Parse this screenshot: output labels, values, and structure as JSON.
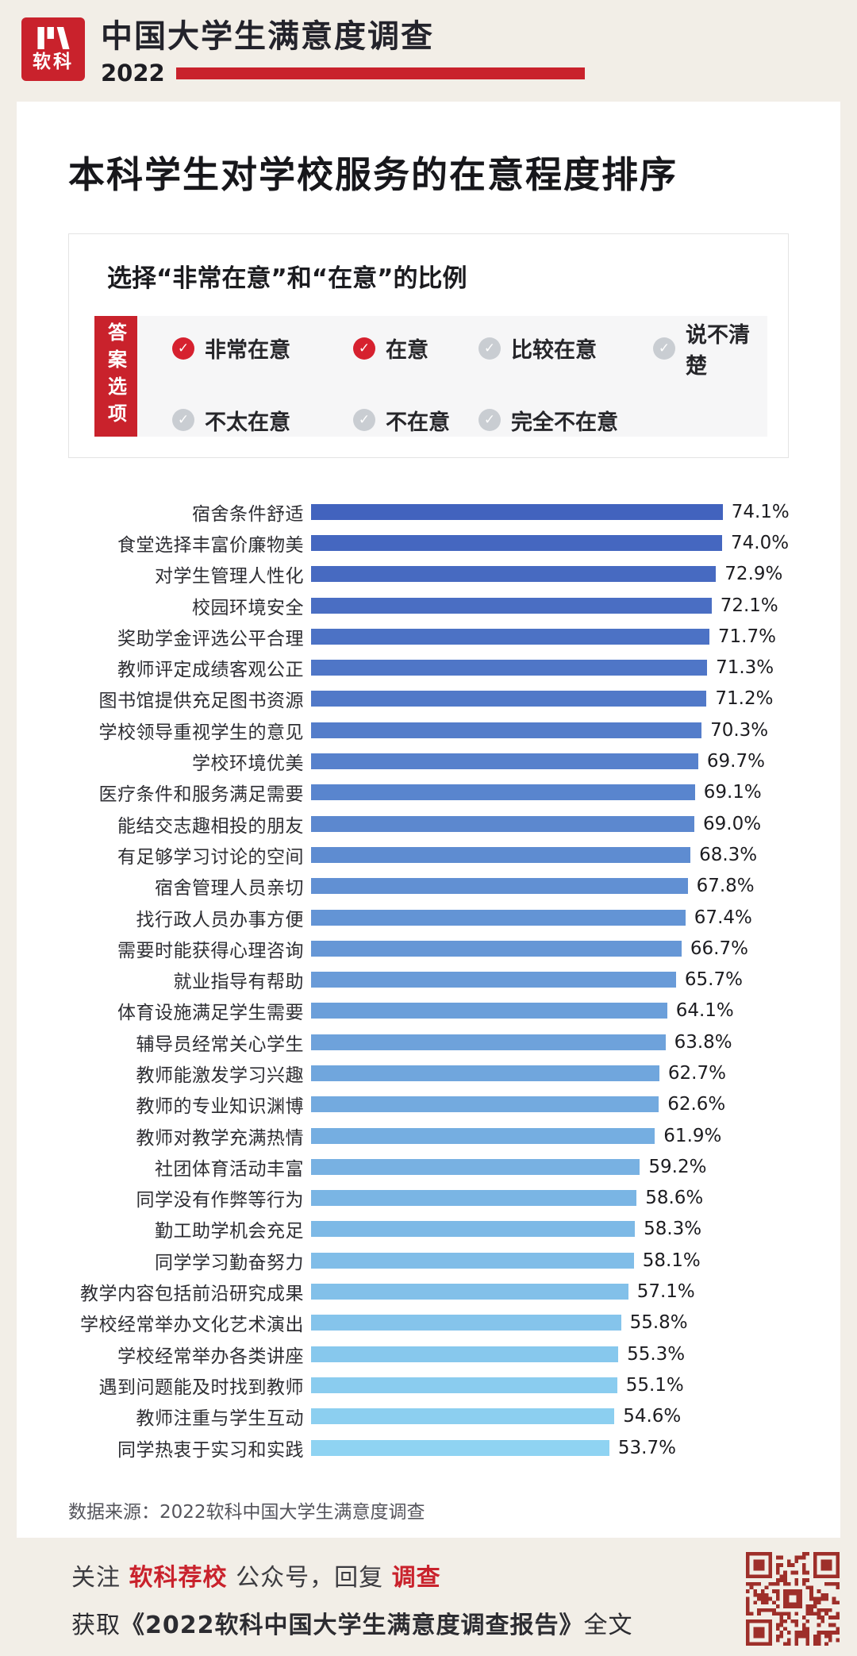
{
  "header": {
    "logo_text": "软科",
    "title": "中国大学生满意度调查",
    "year": "2022"
  },
  "card": {
    "title": "本科学生对学校服务的在意程度排序",
    "legend": {
      "heading": "选择“非常在意”和“在意”的比例",
      "tab_label": "答案选项",
      "options": [
        {
          "label": "非常在意",
          "checked": true
        },
        {
          "label": "在意",
          "checked": true
        },
        {
          "label": "比较在意",
          "checked": false
        },
        {
          "label": "说不清楚",
          "checked": false
        },
        {
          "label": "不太在意",
          "checked": false
        },
        {
          "label": "不在意",
          "checked": false
        },
        {
          "label": "完全不在意",
          "checked": false
        }
      ]
    },
    "source": "数据来源：2022软科中国大学生满意度调查"
  },
  "chart_data": {
    "type": "bar",
    "orientation": "horizontal",
    "title": "本科学生对学校服务的在意程度排序",
    "unit": "%",
    "xlim": [
      0,
      80
    ],
    "legend_position": "none",
    "grid": false,
    "categories": [
      "宿舍条件舒适",
      "食堂选择丰富价廉物美",
      "对学生管理人性化",
      "校园环境安全",
      "奖助学金评选公平合理",
      "教师评定成绩客观公正",
      "图书馆提供充足图书资源",
      "学校领导重视学生的意见",
      "学校环境优美",
      "医疗条件和服务满足需要",
      "能结交志趣相投的朋友",
      "有足够学习讨论的空间",
      "宿舍管理人员亲切",
      "找行政人员办事方便",
      "需要时能获得心理咨询",
      "就业指导有帮助",
      "体育设施满足学生需要",
      "辅导员经常关心学生",
      "教师能激发学习兴趣",
      "教师的专业知识渊博",
      "教师对教学充满热情",
      "社团体育活动丰富",
      "同学没有作弊等行为",
      "勤工助学机会充足",
      "同学学习勤奋努力",
      "教学内容包括前沿研究成果",
      "学校经常举办文化艺术演出",
      "学校经常举办各类讲座",
      "遇到问题能及时找到教师",
      "教师注重与学生互动",
      "同学热衷于实习和实践"
    ],
    "values": [
      74.1,
      74.0,
      72.9,
      72.1,
      71.7,
      71.3,
      71.2,
      70.3,
      69.7,
      69.1,
      69.0,
      68.3,
      67.8,
      67.4,
      66.7,
      65.7,
      64.1,
      63.8,
      62.7,
      62.6,
      61.9,
      59.2,
      58.6,
      58.3,
      58.1,
      57.1,
      55.8,
      55.3,
      55.1,
      54.6,
      53.7
    ],
    "bar_color_start": "#4263be",
    "bar_color_end": "#8fd3f2"
  },
  "footer": {
    "line1": {
      "t1": "关注 ",
      "t2": "软科荐校",
      "t3": " 公众号，回复 ",
      "t4": "调查"
    },
    "line2": {
      "t1": "获取",
      "t2": "《2022软科中国大学生满意度调查报告》",
      "t3": "全文"
    }
  },
  "colors": {
    "accent_red": "#c9222c",
    "checked_red": "#d6212f",
    "unchecked_gray": "#c9cdd2",
    "background": "#f2eee7",
    "qr": "#9e2f2a"
  }
}
